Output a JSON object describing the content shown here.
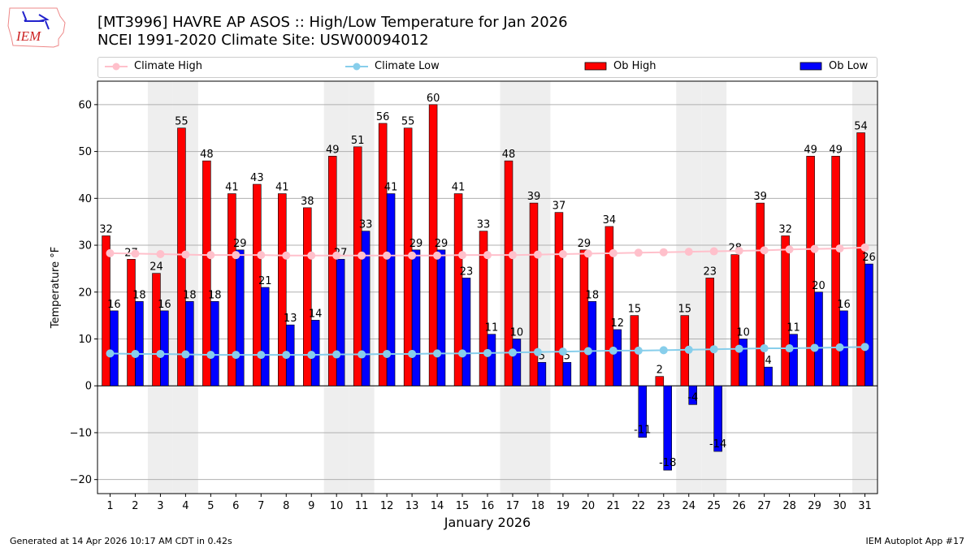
{
  "logo_text": "IEM",
  "chart_data": {
    "type": "bar",
    "title": "[MT3996] HAVRE AP ASOS :: High/Low Temperature for Jan 2026",
    "subtitle": "NCEI 1991-2020 Climate Site: USW00094012",
    "xlabel": "January 2026",
    "ylabel": "Temperature °F",
    "ylim": [
      -23,
      65
    ],
    "xlim": [
      0.5,
      31.5
    ],
    "yticks": [
      -20,
      -10,
      0,
      10,
      20,
      30,
      40,
      50,
      60
    ],
    "grid": true,
    "legend_position": "top",
    "weekend_shading_days": [
      3,
      4,
      10,
      11,
      17,
      18,
      24,
      25,
      31
    ],
    "categories": [
      1,
      2,
      3,
      4,
      5,
      6,
      7,
      8,
      9,
      10,
      11,
      12,
      13,
      14,
      15,
      16,
      17,
      18,
      19,
      20,
      21,
      22,
      23,
      24,
      25,
      26,
      27,
      28,
      29,
      30,
      31
    ],
    "series": [
      {
        "name": "Climate High",
        "kind": "line",
        "color": "#ffc0cb",
        "values": [
          28.3,
          28.2,
          28.1,
          28.0,
          27.9,
          27.9,
          27.9,
          27.8,
          27.8,
          27.8,
          27.8,
          27.8,
          27.8,
          27.8,
          27.9,
          27.9,
          27.9,
          28.0,
          28.1,
          28.2,
          28.3,
          28.4,
          28.5,
          28.6,
          28.7,
          28.8,
          28.9,
          29.1,
          29.2,
          29.3,
          29.5
        ]
      },
      {
        "name": "Climate Low",
        "kind": "line",
        "color": "#87ceeb",
        "values": [
          6.9,
          6.8,
          6.8,
          6.7,
          6.6,
          6.6,
          6.6,
          6.6,
          6.6,
          6.7,
          6.7,
          6.8,
          6.8,
          6.9,
          6.9,
          7.0,
          7.1,
          7.2,
          7.3,
          7.4,
          7.5,
          7.5,
          7.6,
          7.7,
          7.8,
          7.9,
          8.0,
          8.0,
          8.1,
          8.2,
          8.3
        ]
      },
      {
        "name": "Ob High",
        "kind": "bar",
        "color": "#ff0000",
        "values": [
          32,
          27,
          24,
          55,
          48,
          41,
          43,
          41,
          38,
          49,
          51,
          56,
          55,
          60,
          41,
          33,
          48,
          39,
          37,
          29,
          34,
          15,
          2,
          15,
          23,
          28,
          39,
          32,
          49,
          49,
          54
        ]
      },
      {
        "name": "Ob Low",
        "kind": "bar",
        "color": "#0000ff",
        "values": [
          16,
          18,
          16,
          18,
          18,
          29,
          21,
          13,
          14,
          27,
          33,
          41,
          29,
          29,
          23,
          11,
          10,
          5,
          5,
          18,
          12,
          -11,
          -18,
          -4,
          -14,
          10,
          4,
          11,
          20,
          16,
          26
        ]
      }
    ]
  },
  "footer": {
    "left": "Generated at 14 Apr 2026 10:17 AM CDT in 0.42s",
    "right": "IEM Autoplot App #17"
  }
}
